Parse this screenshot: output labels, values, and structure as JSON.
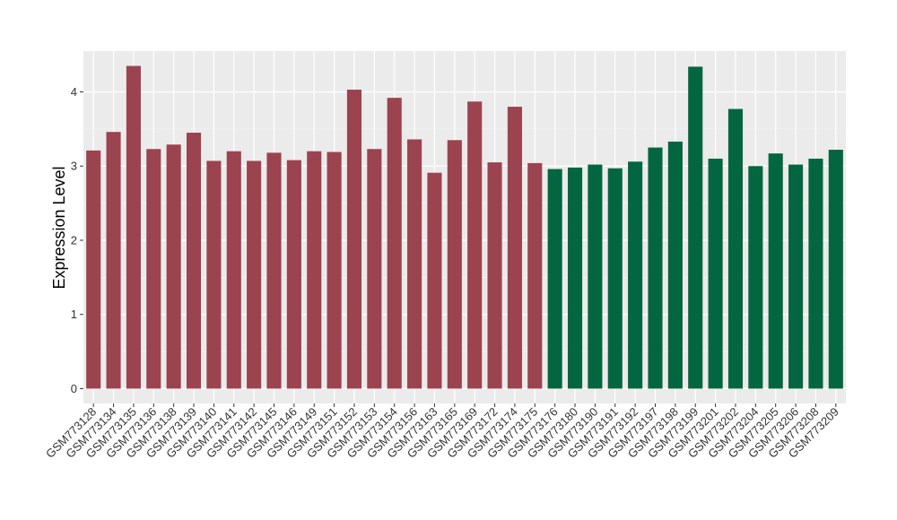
{
  "chart_data": {
    "type": "bar",
    "ylabel": "Expression Level",
    "xlabel": "",
    "ylim": [
      -0.2,
      4.55
    ],
    "yticks": [
      0,
      1,
      2,
      3,
      4
    ],
    "ytick_labels": [
      "0",
      "1",
      "2",
      "3",
      "4"
    ],
    "grid": true,
    "panel_color": "#ebebeb",
    "group_colors": [
      "#9c4350",
      "#036641"
    ],
    "categories": [
      "GSM773128",
      "GSM773134",
      "GSM773135",
      "GSM773136",
      "GSM773138",
      "GSM773139",
      "GSM773140",
      "GSM773141",
      "GSM773142",
      "GSM773145",
      "GSM773146",
      "GSM773149",
      "GSM773151",
      "GSM773152",
      "GSM773153",
      "GSM773154",
      "GSM773156",
      "GSM773163",
      "GSM773165",
      "GSM773169",
      "GSM773172",
      "GSM773174",
      "GSM773175",
      "GSM773176",
      "GSM773180",
      "GSM773190",
      "GSM773191",
      "GSM773192",
      "GSM773197",
      "GSM773198",
      "GSM773199",
      "GSM773201",
      "GSM773202",
      "GSM773204",
      "GSM773205",
      "GSM773206",
      "GSM773208",
      "GSM773209"
    ],
    "values": [
      3.21,
      3.46,
      4.35,
      3.23,
      3.29,
      3.45,
      3.07,
      3.2,
      3.07,
      3.18,
      3.08,
      3.2,
      3.19,
      4.03,
      3.23,
      3.92,
      3.36,
      2.91,
      3.35,
      3.87,
      3.05,
      3.8,
      3.04,
      2.96,
      2.98,
      3.02,
      2.97,
      3.06,
      3.25,
      3.33,
      4.34,
      3.1,
      3.77,
      3.0,
      3.17,
      3.02,
      3.1,
      3.22
    ],
    "groups": [
      0,
      0,
      0,
      0,
      0,
      0,
      0,
      0,
      0,
      0,
      0,
      0,
      0,
      0,
      0,
      0,
      0,
      0,
      0,
      0,
      0,
      0,
      0,
      1,
      1,
      1,
      1,
      1,
      1,
      1,
      1,
      1,
      1,
      1,
      1,
      1,
      1,
      1
    ]
  }
}
